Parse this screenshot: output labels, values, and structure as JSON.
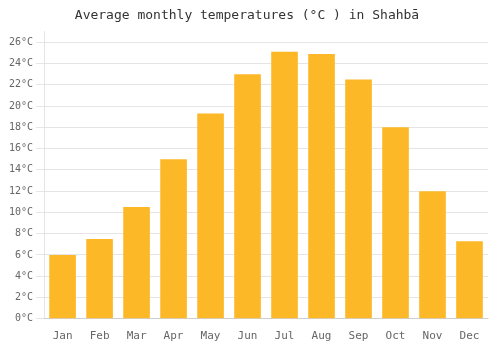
{
  "chart_data": {
    "type": "bar",
    "title": "Average monthly temperatures (°C ) in Shahbā",
    "categories": [
      "Jan",
      "Feb",
      "Mar",
      "Apr",
      "May",
      "Jun",
      "Jul",
      "Aug",
      "Sep",
      "Oct",
      "Nov",
      "Dec"
    ],
    "values": [
      6.0,
      7.5,
      10.5,
      15.0,
      19.3,
      23.0,
      25.1,
      24.9,
      22.5,
      18.0,
      12.0,
      7.3
    ],
    "color": "#FDB827",
    "ylim": [
      0,
      27
    ],
    "yticks": [
      {
        "value": 0,
        "label": "0°C"
      },
      {
        "value": 2,
        "label": "2°C"
      },
      {
        "value": 4,
        "label": "4°C"
      },
      {
        "value": 6,
        "label": "6°C"
      },
      {
        "value": 8,
        "label": "8°C"
      },
      {
        "value": 10,
        "label": "10°C"
      },
      {
        "value": 12,
        "label": "12°C"
      },
      {
        "value": 14,
        "label": "14°C"
      },
      {
        "value": 16,
        "label": "16°C"
      },
      {
        "value": 18,
        "label": "18°C"
      },
      {
        "value": 20,
        "label": "20°C"
      },
      {
        "value": 22,
        "label": "22°C"
      },
      {
        "value": 24,
        "label": "24°C"
      },
      {
        "value": 26,
        "label": "26°C"
      }
    ],
    "grid": true
  }
}
